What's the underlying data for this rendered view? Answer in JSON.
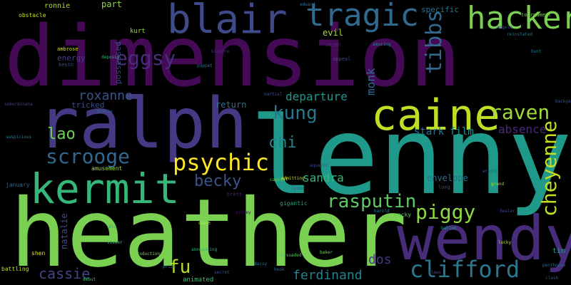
{
  "background": "#000000",
  "words": [
    {
      "text": "dimension",
      "color": "#440a55"
    },
    {
      "text": "lenny",
      "color": "#1f9a8a"
    },
    {
      "text": "heather",
      "color": "#7ad151"
    },
    {
      "text": "ralph",
      "color": "#443a83"
    },
    {
      "text": "wendy",
      "color": "#472c7a"
    },
    {
      "text": "caine",
      "color": "#bddf26"
    },
    {
      "text": "kermit",
      "color": "#35b779"
    },
    {
      "text": "blair",
      "color": "#3e4a89"
    },
    {
      "text": "tragic",
      "color": "#306a8e"
    },
    {
      "text": "hacker",
      "color": "#7ad151"
    },
    {
      "text": "clifford",
      "color": "#2a788e"
    },
    {
      "text": "scrooge",
      "color": "#31688e"
    },
    {
      "text": "psychic",
      "color": "#fde725"
    },
    {
      "text": "raven",
      "color": "#a2da37"
    },
    {
      "text": "kung",
      "color": "#2a788e"
    },
    {
      "text": "rasputin",
      "color": "#5ec962"
    },
    {
      "text": "piggy",
      "color": "#8fd744"
    },
    {
      "text": "becky",
      "color": "#3b528b"
    },
    {
      "text": "tibbs",
      "color": "#31688e"
    },
    {
      "text": "cheyenne",
      "color": "#c2df23"
    },
    {
      "text": "eggsy",
      "color": "#472d7b"
    },
    {
      "text": "roxanne",
      "color": "#3b528b"
    },
    {
      "text": "lao",
      "color": "#6ece58"
    },
    {
      "text": "chi",
      "color": "#26828e"
    },
    {
      "text": "departure",
      "color": "#1f988b"
    },
    {
      "text": "cassie",
      "color": "#414487"
    },
    {
      "text": "fu",
      "color": "#b5de2b"
    },
    {
      "text": "sandra",
      "color": "#35b779"
    },
    {
      "text": "dos",
      "color": "#443983"
    },
    {
      "text": "ferdinand",
      "color": "#25848e"
    },
    {
      "text": "monk",
      "color": "#31688e"
    },
    {
      "text": "absence",
      "color": "#482878"
    },
    {
      "text": "stark",
      "color": "#2c728e"
    },
    {
      "text": "film",
      "color": "#21918c"
    },
    {
      "text": "part",
      "color": "#8fd744"
    },
    {
      "text": "ronnie",
      "color": "#addc30"
    },
    {
      "text": "kurt",
      "color": "#8fd744"
    },
    {
      "text": "evil",
      "color": "#a8db34"
    },
    {
      "text": "specific",
      "color": "#2c728e"
    },
    {
      "text": "possessed",
      "color": "#3e4989"
    },
    {
      "text": "energy",
      "color": "#433e85"
    },
    {
      "text": "tricked",
      "color": "#3d4d8a"
    },
    {
      "text": "return",
      "color": "#2c728e"
    },
    {
      "text": "amusement",
      "color": "#9bd93c"
    },
    {
      "text": "natalie",
      "color": "#3e4c8a"
    },
    {
      "text": "battling",
      "color": "#c2df23"
    },
    {
      "text": "shen",
      "color": "#dde318"
    },
    {
      "text": "animated",
      "color": "#3dbc74"
    },
    {
      "text": "envelope",
      "color": "#2d708e"
    },
    {
      "text": "tim",
      "color": "#1fa088"
    },
    {
      "text": "january",
      "color": "#31688e"
    },
    {
      "text": "obstacle",
      "color": "#cae11f"
    },
    {
      "text": "tournament",
      "color": "#7ad151"
    },
    {
      "text": "gigantic",
      "color": "#22a785"
    },
    {
      "text": "rocky",
      "color": "#5ec962"
    },
    {
      "text": "ambrose",
      "color": "#d0e11c"
    },
    {
      "text": "kevin",
      "color": "#3b528b"
    },
    {
      "text": "sarah",
      "color": "#46327e"
    },
    {
      "text": "appeal",
      "color": "#3e4989"
    },
    {
      "text": "puppet",
      "color": "#2e6e8e"
    },
    {
      "text": "martial",
      "color": "#3e4a89"
    },
    {
      "text": "capital",
      "color": "#6ccd5a"
    },
    {
      "text": "brett",
      "color": "#482173"
    },
    {
      "text": "long",
      "color": "#3f4889"
    },
    {
      "text": "daisy",
      "color": "#2a788e"
    },
    {
      "text": "production",
      "color": "#73d056"
    },
    {
      "text": "persuaded",
      "color": "#5ec962"
    },
    {
      "text": "duke",
      "color": "#c8e020"
    },
    {
      "text": "ashley",
      "color": "#471164"
    },
    {
      "text": "announcing",
      "color": "#2fb47c"
    },
    {
      "text": "lycan",
      "color": "#3b528b"
    },
    {
      "text": "baker",
      "color": "#6ece58"
    },
    {
      "text": "wright",
      "color": "#355f8d"
    },
    {
      "text": "dealer",
      "color": "#3e4c8a"
    },
    {
      "text": "grand",
      "color": "#a8db34"
    },
    {
      "text": "ballon",
      "color": "#1f9e89"
    },
    {
      "text": "lucky",
      "color": "#b5de2b"
    },
    {
      "text": "backyard",
      "color": "#3b528b"
    },
    {
      "text": "penthouse",
      "color": "#31688e"
    },
    {
      "text": "harold",
      "color": "#24878e"
    },
    {
      "text": "angela",
      "color": "#3e4a89"
    },
    {
      "text": "reinstated",
      "color": "#2a788e"
    },
    {
      "text": "amazing",
      "color": "#277f8e"
    },
    {
      "text": "deposit",
      "color": "#2db27d"
    },
    {
      "text": "bizarre",
      "color": "#46337f"
    },
    {
      "text": "edward",
      "color": "#2e6f8e"
    },
    {
      "text": "admitting",
      "color": "#c8e020"
    },
    {
      "text": "aquatic",
      "color": "#3e4989"
    },
    {
      "text": "subordinate",
      "color": "#3f4788"
    },
    {
      "text": "suspicious",
      "color": "#25838e"
    },
    {
      "text": "prize",
      "color": "#2a788e"
    },
    {
      "text": "hook",
      "color": "#2d708e"
    },
    {
      "text": "clash",
      "color": "#39558c"
    },
    {
      "text": "viewer",
      "color": "#35b779"
    },
    {
      "text": "debut",
      "color": "#4ac16d"
    },
    {
      "text": "ali",
      "color": "#22a884"
    },
    {
      "text": "secret",
      "color": "#3b528b"
    },
    {
      "text": "hunt",
      "color": "#2a788e"
    },
    {
      "text": "claws",
      "color": "#3f4788"
    },
    {
      "text": "gracie",
      "color": "#2c728e"
    }
  ]
}
